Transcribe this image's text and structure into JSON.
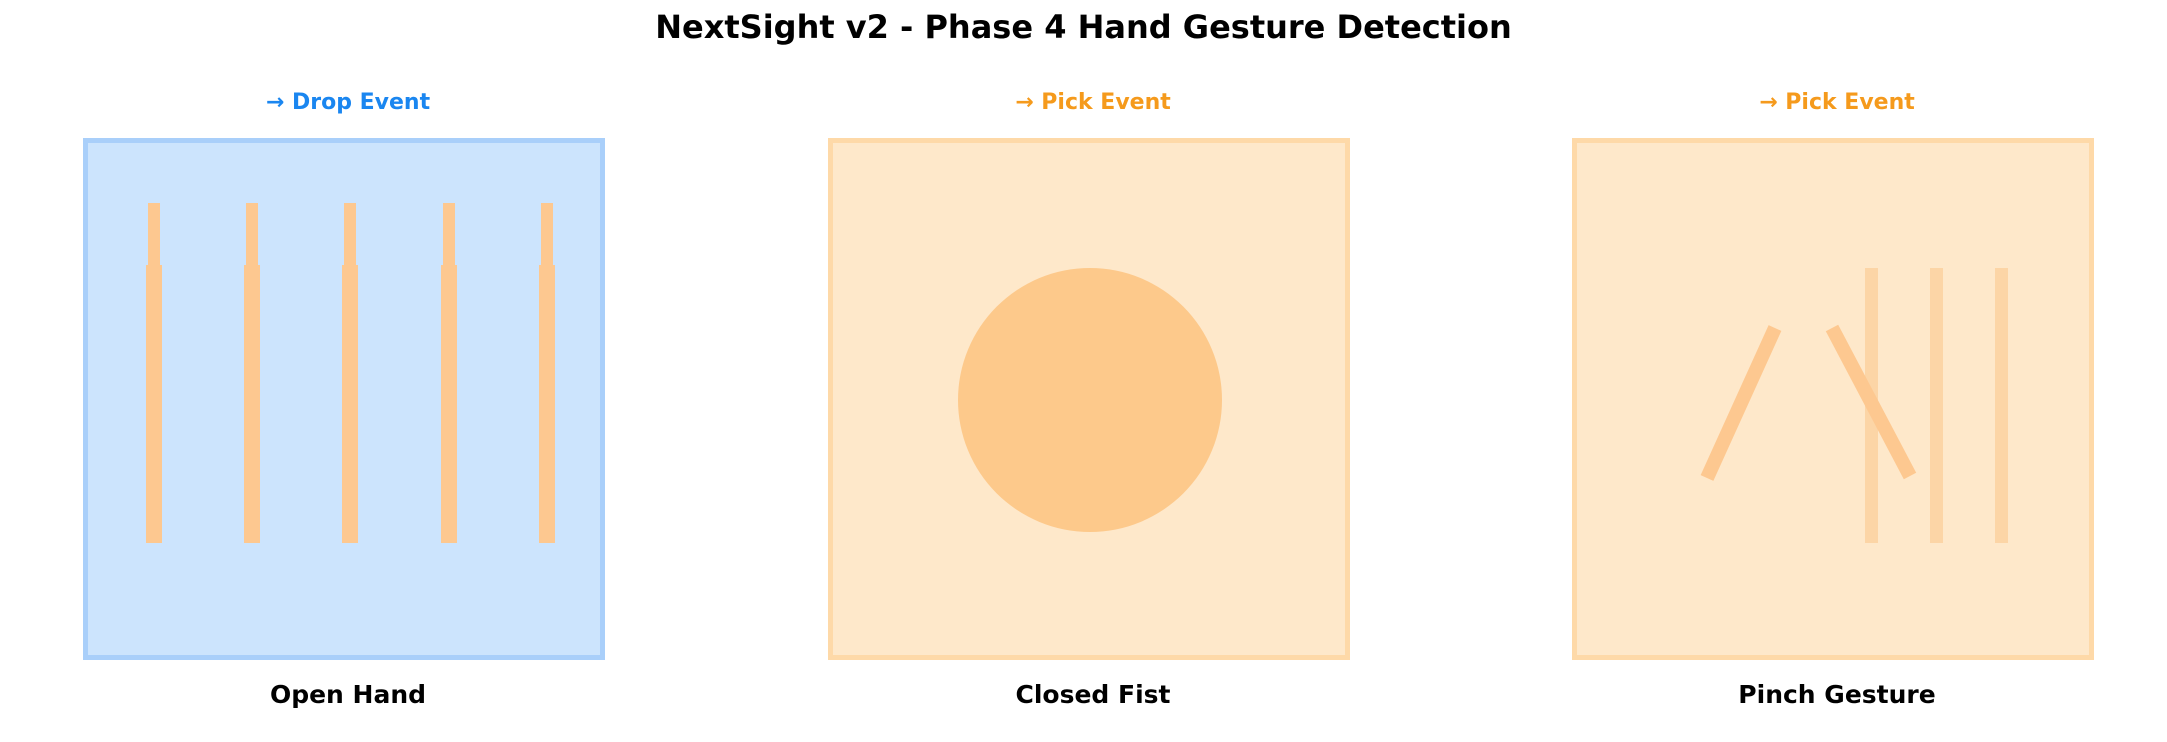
{
  "title": "NextSight v2 - Phase 4 Hand Gesture Detection",
  "panels": [
    {
      "event": "→ Drop Event",
      "event_color": "#1a86f0",
      "box_fill": "#cce4fd",
      "box_border": "#a9cffa",
      "gesture": "Open Hand",
      "icon": "open-hand-icon"
    },
    {
      "event": "→ Pick Event",
      "event_color": "#f59a1c",
      "box_fill": "#fee8ca",
      "box_border": "#fed9a8",
      "gesture": "Closed Fist",
      "icon": "closed-fist-icon"
    },
    {
      "event": "→ Pick Event",
      "event_color": "#f59a1c",
      "box_fill": "#fee8ca",
      "box_border": "#fed9a8",
      "gesture": "Pinch Gesture",
      "icon": "pinch-gesture-icon"
    }
  ],
  "colors": {
    "finger": "#fdc890",
    "fist": "#fdc98b",
    "pinch_line": "#fcd5a6"
  }
}
